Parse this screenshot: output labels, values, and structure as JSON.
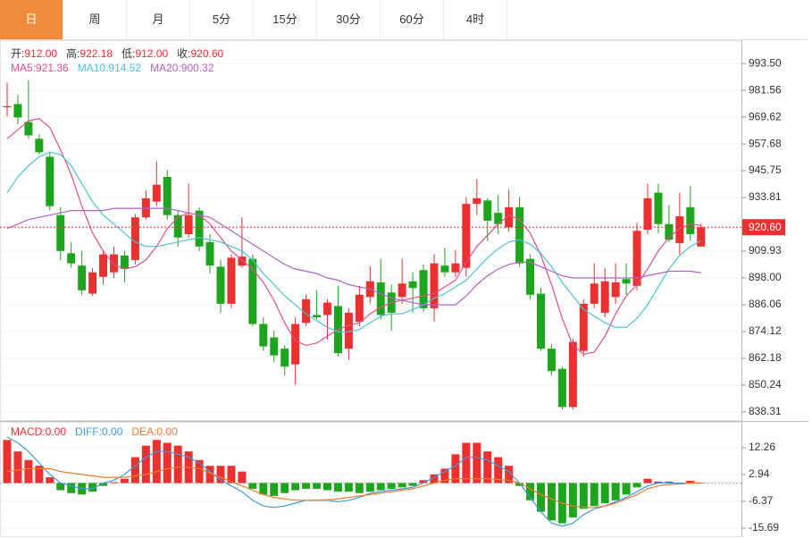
{
  "tabs": [
    "日",
    "周",
    "月",
    "5分",
    "15分",
    "30分",
    "60分",
    "4时"
  ],
  "active_tab": 0,
  "chart_data": [
    {
      "type": "candlestick",
      "up_color": "#ec2f2f",
      "down_color": "#1ea51e",
      "quote": [
        [
          "开:",
          "912.00"
        ],
        [
          "高:",
          "922.18"
        ],
        [
          "低:",
          "912.00"
        ],
        [
          "收:",
          "920.60"
        ]
      ],
      "open": [
        974,
        975.5,
        967.5,
        960,
        952,
        926,
        909,
        903.5,
        891,
        898.5,
        900.5,
        908,
        906,
        925,
        932,
        943,
        926,
        917.5,
        928,
        914,
        903,
        886.5,
        903.5,
        906.5,
        877.5,
        871.5,
        866.5,
        859.5,
        878,
        881.5,
        881.5,
        885.5,
        866.5,
        878.5,
        889.5,
        896,
        891.5,
        889.5,
        896.5,
        901.5,
        884.5,
        903.5,
        900.5,
        902.5,
        931,
        932.5,
        927,
        920.5,
        929.5,
        906.5,
        891,
        866.5,
        857.5,
        840.5,
        865.5,
        886.5,
        882.5,
        889.5,
        897.5,
        894.5,
        919.5,
        936,
        922,
        913.5,
        929.5,
        912
      ],
      "high": [
        985,
        979.5,
        986,
        962,
        954,
        929.5,
        914,
        910,
        902.5,
        910.5,
        912,
        910,
        926.5,
        937,
        950,
        946,
        928,
        940,
        929.5,
        917.5,
        906,
        908.5,
        925,
        908.5,
        880.5,
        874.5,
        868,
        880.5,
        890.5,
        892.5,
        888.5,
        894.5,
        884.5,
        894.5,
        903,
        906.5,
        895,
        906.5,
        900.5,
        904,
        908.5,
        911.5,
        910.5,
        934,
        942,
        933.5,
        935,
        937.5,
        934,
        908.5,
        893.5,
        868.5,
        858.5,
        871,
        888.5,
        904.5,
        902.5,
        904.5,
        904.5,
        922.5,
        940,
        940,
        930.5,
        936,
        939,
        922.18
      ],
      "low": [
        970,
        966.5,
        960,
        953,
        928,
        906,
        902.5,
        890.5,
        890,
        895,
        898,
        896,
        904,
        924,
        930,
        924,
        912,
        916,
        910,
        900,
        882.5,
        884.5,
        902.5,
        876.5,
        865.5,
        860.5,
        854.5,
        850.5,
        876.5,
        879.5,
        870.5,
        863,
        861.5,
        876.5,
        886.5,
        879.5,
        874.5,
        886.5,
        882.5,
        883,
        878.5,
        898.5,
        898.5,
        898.5,
        926,
        914.5,
        917.5,
        918.5,
        903,
        888.5,
        865.5,
        854.5,
        839.5,
        839.5,
        863,
        884.5,
        880.5,
        886.5,
        890.5,
        892.5,
        917.5,
        918,
        914,
        908.5,
        914.5,
        912
      ],
      "close": [
        974.5,
        969.5,
        961.5,
        954,
        930,
        910,
        904.5,
        892.5,
        900.5,
        908.5,
        908.5,
        902,
        925,
        933.5,
        939.5,
        926,
        916,
        926,
        912,
        903.5,
        886.5,
        907,
        907.5,
        877.5,
        867.5,
        863.5,
        858.5,
        877.5,
        888.5,
        880.5,
        887,
        864.5,
        882.5,
        890.5,
        896.5,
        881.5,
        882.5,
        895.5,
        893.5,
        884.5,
        904.5,
        900.5,
        904.5,
        931,
        933.5,
        923.5,
        922,
        929.5,
        904.5,
        890.5,
        866.5,
        856.5,
        840.5,
        869.5,
        886.5,
        895.5,
        896.5,
        896,
        895.5,
        919,
        933.5,
        922,
        915,
        925.5,
        917.5,
        920.6
      ],
      "series": [
        {
          "name": "MA5:",
          "last": "921.36",
          "color": "#e0508c",
          "values": [
            960,
            964,
            968,
            969,
            965,
            955,
            944,
            930,
            918,
            910,
            904,
            902,
            903,
            906,
            912,
            920,
            925,
            927,
            926,
            922,
            916,
            910,
            906,
            902,
            896,
            888,
            878,
            870,
            868,
            869,
            872,
            875,
            877,
            878,
            882,
            885,
            887,
            888,
            889,
            890,
            891,
            894,
            897,
            905,
            912,
            917,
            922,
            926,
            924,
            918,
            908,
            895,
            880,
            868,
            864,
            865,
            872,
            882,
            890,
            895,
            902,
            910,
            916,
            920,
            922,
            921.36
          ]
        },
        {
          "name": "MA10:",
          "last": "914.52",
          "color": "#4cc2d6",
          "values": [
            936,
            943,
            948,
            952,
            954,
            953,
            948,
            940,
            932,
            926,
            922,
            918,
            914,
            912,
            912,
            913,
            914,
            915,
            916,
            915,
            914,
            912,
            910,
            906,
            900,
            895,
            890,
            886,
            882,
            879,
            876,
            874,
            874,
            875,
            878,
            881,
            882,
            882,
            884,
            886,
            889,
            891,
            894,
            897,
            902,
            907,
            911,
            914,
            915,
            913,
            909,
            903,
            896,
            890,
            884,
            881,
            878,
            876,
            876,
            880,
            886,
            894,
            902,
            908,
            912,
            914.52
          ]
        },
        {
          "name": "MA20:",
          "last": "900.32",
          "color": "#b160c8",
          "values": [
            920,
            922,
            924,
            925,
            926,
            927,
            928,
            928,
            928,
            928,
            929,
            929,
            929,
            929,
            929,
            929,
            928,
            927,
            926,
            925,
            922,
            919,
            916,
            913,
            910,
            907,
            904,
            902,
            901,
            900,
            898,
            897,
            895,
            894,
            893,
            891,
            889,
            888,
            887,
            886,
            886,
            886,
            886,
            890,
            895,
            899,
            902,
            904,
            905,
            905,
            903,
            901,
            899,
            898,
            898,
            898,
            898,
            898,
            898,
            898,
            899,
            900,
            901,
            901,
            901,
            900.32
          ]
        }
      ],
      "price_line": {
        "value": 920.6,
        "label": "920.60"
      },
      "ylim": [
        834.7,
        1003.9
      ],
      "yticks": [
        {
          "value": 993.5,
          "label": "993.50"
        },
        {
          "value": 981.56,
          "label": "981.56"
        },
        {
          "value": 969.62,
          "label": "969.62"
        },
        {
          "value": 957.68,
          "label": "957.68"
        },
        {
          "value": 945.75,
          "label": "945.75"
        },
        {
          "value": 933.81,
          "label": "933.81"
        },
        {
          "value": 909.93,
          "label": "909.93"
        },
        {
          "value": 898.0,
          "label": "898.00"
        },
        {
          "value": 886.06,
          "label": "886.06"
        },
        {
          "value": 874.12,
          "label": "874.12"
        },
        {
          "value": 862.18,
          "label": "862.18"
        },
        {
          "value": 850.24,
          "label": "850.24"
        },
        {
          "value": 838.31,
          "label": "838.31"
        }
      ]
    },
    {
      "type": "macd",
      "up_color": "#ec2f2f",
      "down_color": "#1ea51e",
      "series": [
        {
          "name": "MACD:",
          "last": "0.00",
          "color": "#ec2f2f",
          "values": [
            15,
            11,
            8,
            6,
            2,
            -2.5,
            -3.5,
            -4,
            -3,
            -1,
            0.3,
            1.5,
            9,
            13,
            15,
            14,
            13,
            11,
            8,
            6,
            6,
            6,
            4,
            -2,
            -4,
            -4.5,
            -3.5,
            -2.5,
            -2,
            -2,
            -2.5,
            -3,
            -3,
            -3.5,
            -3,
            -2.5,
            -2,
            -1.5,
            -1,
            1,
            3,
            5,
            10,
            14,
            14,
            11,
            9,
            6,
            -1,
            -6,
            -10,
            -13,
            -14,
            -12,
            -9,
            -8,
            -7,
            -6,
            -4,
            -1.5,
            1.5,
            0.5,
            0.5,
            -0.5,
            0.8,
            0
          ]
        },
        {
          "name": "DIFF:",
          "last": "0.00",
          "color": "#3f9be0",
          "values": [
            16,
            14,
            11,
            7,
            3,
            0,
            -1,
            -2,
            -2,
            0,
            1,
            3,
            6,
            9,
            11,
            11,
            10,
            9,
            7,
            4,
            1,
            -1,
            -3,
            -6,
            -8,
            -8.5,
            -8,
            -7,
            -6,
            -6,
            -6,
            -6.5,
            -6,
            -5,
            -3.5,
            -3,
            -2.5,
            -2,
            -1.5,
            0,
            2,
            4,
            6,
            9,
            9,
            8,
            6,
            4,
            0,
            -5,
            -10,
            -14,
            -15,
            -14,
            -11,
            -9,
            -8,
            -6.5,
            -5,
            -3,
            -1,
            0,
            0,
            0,
            0,
            0
          ]
        },
        {
          "name": "DEA:",
          "last": "0.00",
          "color": "#f07b2a",
          "values": [
            4,
            4.5,
            5,
            5,
            5,
            4,
            3.5,
            3,
            2.5,
            2,
            2,
            2,
            2.5,
            3,
            4,
            5,
            5.5,
            5.5,
            5,
            3.5,
            2,
            0.5,
            -1,
            -2.5,
            -4,
            -5,
            -5.5,
            -6,
            -6,
            -6,
            -5.8,
            -5.5,
            -5,
            -4.5,
            -4,
            -3.5,
            -3,
            -2.5,
            -2,
            -1,
            0,
            1,
            1.5,
            1.5,
            1.5,
            1.5,
            1.2,
            1,
            0,
            -2,
            -4,
            -5.5,
            -7,
            -8,
            -8.5,
            -8.5,
            -8,
            -7,
            -5.5,
            -4,
            -2,
            -1,
            -0.5,
            -0.3,
            0,
            0
          ]
        }
      ],
      "ylim": [
        -18.5,
        21.3
      ],
      "yticks": [
        12.26,
        2.94,
        -6.37,
        -15.69
      ]
    }
  ]
}
